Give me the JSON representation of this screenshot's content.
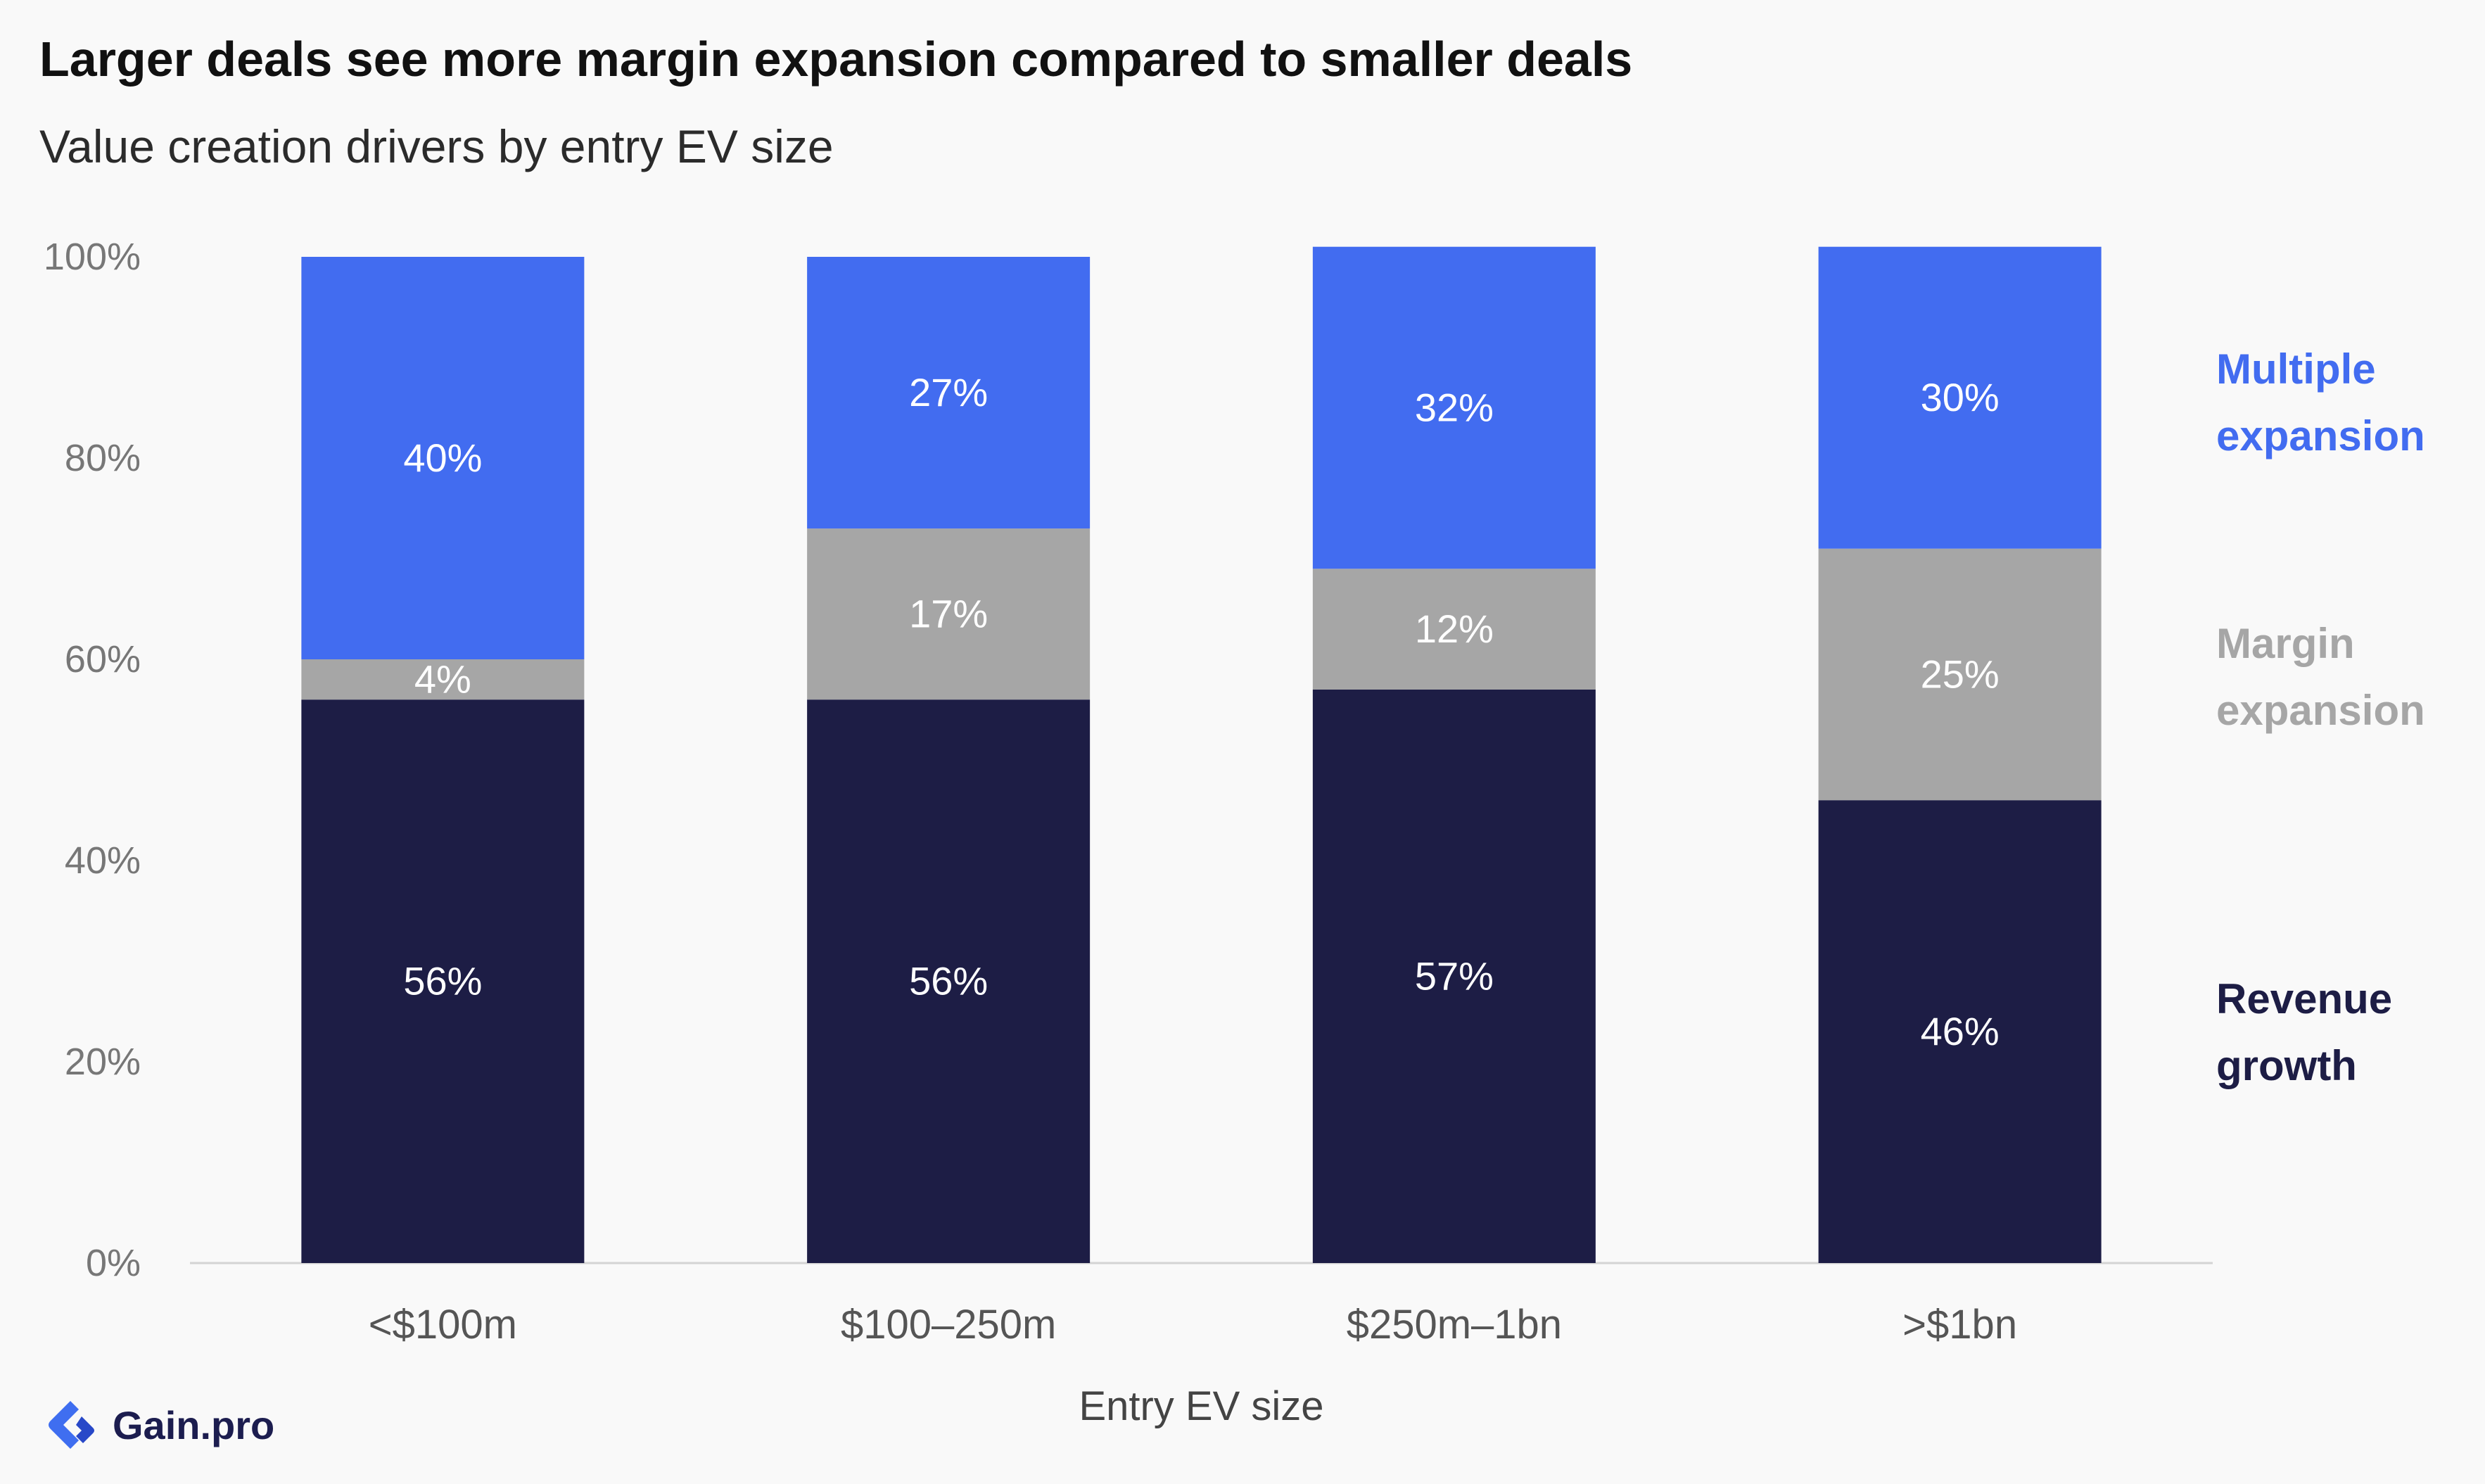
{
  "title": "Larger deals see more margin expansion compared to smaller deals",
  "subtitle": "Value creation drivers by entry EV size",
  "brand": {
    "name": "Gain.pro"
  },
  "chart_data": {
    "type": "bar",
    "stacked": true,
    "categories": [
      "<$100m",
      "$100–250m",
      "$250m–1bn",
      ">$1bn"
    ],
    "series": [
      {
        "name": "Revenue growth",
        "values": [
          56,
          56,
          57,
          46
        ],
        "color": "#1d1d45"
      },
      {
        "name": "Margin expansion",
        "values": [
          4,
          17,
          12,
          25
        ],
        "color": "#a6a6a6"
      },
      {
        "name": "Multiple expansion",
        "values": [
          40,
          27,
          32,
          30
        ],
        "color": "#426cf0"
      }
    ],
    "legend_lines": [
      {
        "series": "Multiple expansion",
        "lines": [
          "Multiple",
          "expansion"
        ],
        "color": "#426cf0"
      },
      {
        "series": "Margin expansion",
        "lines": [
          "Margin",
          "expansion"
        ],
        "color": "#a6a6a6"
      },
      {
        "series": "Revenue growth",
        "lines": [
          "Revenue",
          "growth"
        ],
        "color": "#1d1d45"
      }
    ],
    "value_suffix": "%",
    "yticks": [
      "0%",
      "20%",
      "40%",
      "60%",
      "80%",
      "100%"
    ],
    "ylim": [
      0,
      100
    ],
    "xlabel": "Entry EV size",
    "ylabel": "",
    "grid": false,
    "legend_position": "right"
  }
}
